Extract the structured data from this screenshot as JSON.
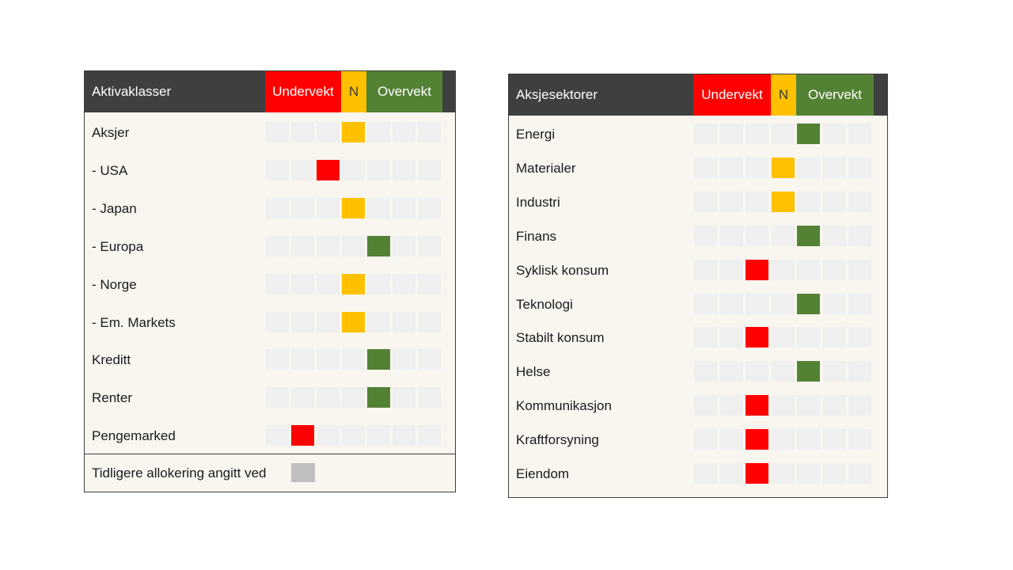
{
  "left_panel": {
    "title": "Aktivaklasser",
    "header_segments": {
      "under": "Undervekt",
      "neutral": "N",
      "over": "Overvekt"
    },
    "rows": [
      {
        "label": "Aksjer",
        "position": 4
      },
      {
        "label": "- USA",
        "position": 3
      },
      {
        "label": "- Japan",
        "position": 4
      },
      {
        "label": "- Europa",
        "position": 5
      },
      {
        "label": "- Norge",
        "position": 4
      },
      {
        "label": "- Em. Markets",
        "position": 4
      },
      {
        "label": "Kreditt",
        "position": 5
      },
      {
        "label": "Renter",
        "position": 5
      },
      {
        "label": "Pengemarked",
        "position": 2
      }
    ],
    "legend_text": "Tidligere allokering angitt ved"
  },
  "right_panel": {
    "title": "Aksjesektorer",
    "header_segments": {
      "under": "Undervekt",
      "neutral": "N",
      "over": "Overvekt"
    },
    "rows": [
      {
        "label": "Energi",
        "position": 5
      },
      {
        "label": "Materialer",
        "position": 4
      },
      {
        "label": "Industri",
        "position": 4
      },
      {
        "label": "Finans",
        "position": 5
      },
      {
        "label": "Syklisk konsum",
        "position": 3
      },
      {
        "label": "Teknologi",
        "position": 5
      },
      {
        "label": "Stabilt konsum",
        "position": 3
      },
      {
        "label": "Helse",
        "position": 5
      },
      {
        "label": "Kommunikasjon",
        "position": 3
      },
      {
        "label": "Kraftforsyning",
        "position": 3
      },
      {
        "label": "Eiendom",
        "position": 3
      }
    ]
  },
  "scale": {
    "cells": 7,
    "neutral_index": 4
  },
  "colors": {
    "header_bg": "#3f3f3f",
    "under": "#ff0000",
    "neutral": "#ffc000",
    "over": "#548235",
    "empty_cell": "#efefef",
    "legend_swatch": "#bfbfbf",
    "panel_bg": "#f8f6ef"
  }
}
